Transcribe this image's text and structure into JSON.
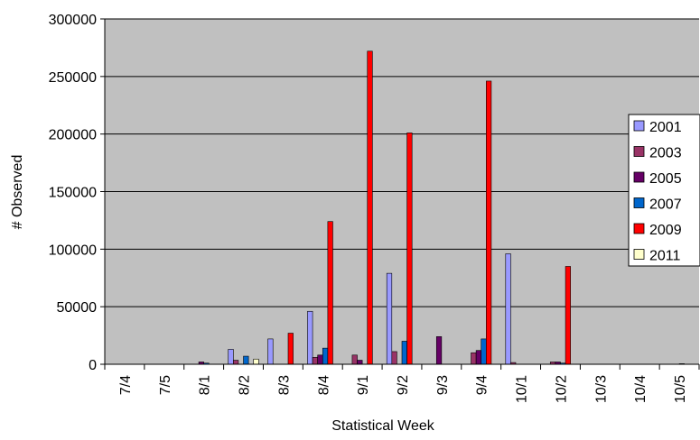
{
  "chart_data": {
    "type": "bar",
    "title": "",
    "xlabel": "Statistical Week",
    "ylabel": "# Observed",
    "ylim": [
      0,
      300000
    ],
    "yticks": [
      0,
      50000,
      100000,
      150000,
      200000,
      250000,
      300000
    ],
    "grid": true,
    "legend_position": "right",
    "categories": [
      "7/4",
      "7/5",
      "8/1",
      "8/2",
      "8/3",
      "8/4",
      "9/1",
      "9/2",
      "9/3",
      "9/4",
      "10/1",
      "10/2",
      "10/3",
      "10/4",
      "10/5"
    ],
    "series": [
      {
        "name": "2001",
        "color": "#9999ff",
        "values": [
          0,
          0,
          0,
          13000,
          22000,
          46000,
          0,
          79000,
          0,
          0,
          96000,
          0,
          0,
          0,
          0
        ]
      },
      {
        "name": "2003",
        "color": "#993366",
        "values": [
          0,
          0,
          0,
          3500,
          0,
          6000,
          8000,
          11000,
          0,
          10000,
          1500,
          2000,
          0,
          0,
          0
        ]
      },
      {
        "name": "2005",
        "color": "#660066",
        "values": [
          0,
          0,
          2000,
          0,
          0,
          8000,
          3500,
          0,
          24000,
          12000,
          0,
          2000,
          0,
          0,
          0
        ]
      },
      {
        "name": "2007",
        "color": "#0066cc",
        "values": [
          0,
          0,
          1000,
          7000,
          0,
          14000,
          0,
          20000,
          0,
          22000,
          0,
          1000,
          0,
          0,
          500
        ]
      },
      {
        "name": "2009",
        "color": "#ff0000",
        "values": [
          0,
          0,
          0,
          0,
          27000,
          124000,
          272000,
          201000,
          0,
          246000,
          0,
          85000,
          0,
          0,
          0
        ]
      },
      {
        "name": "2011",
        "color": "#ffffcc",
        "values": [
          0,
          0,
          0,
          4500,
          0,
          0,
          0,
          0,
          0,
          0,
          0,
          0,
          0,
          0,
          0
        ]
      }
    ],
    "colors": {
      "plot_background": "#c0c0c0",
      "gridline": "#000000"
    }
  }
}
